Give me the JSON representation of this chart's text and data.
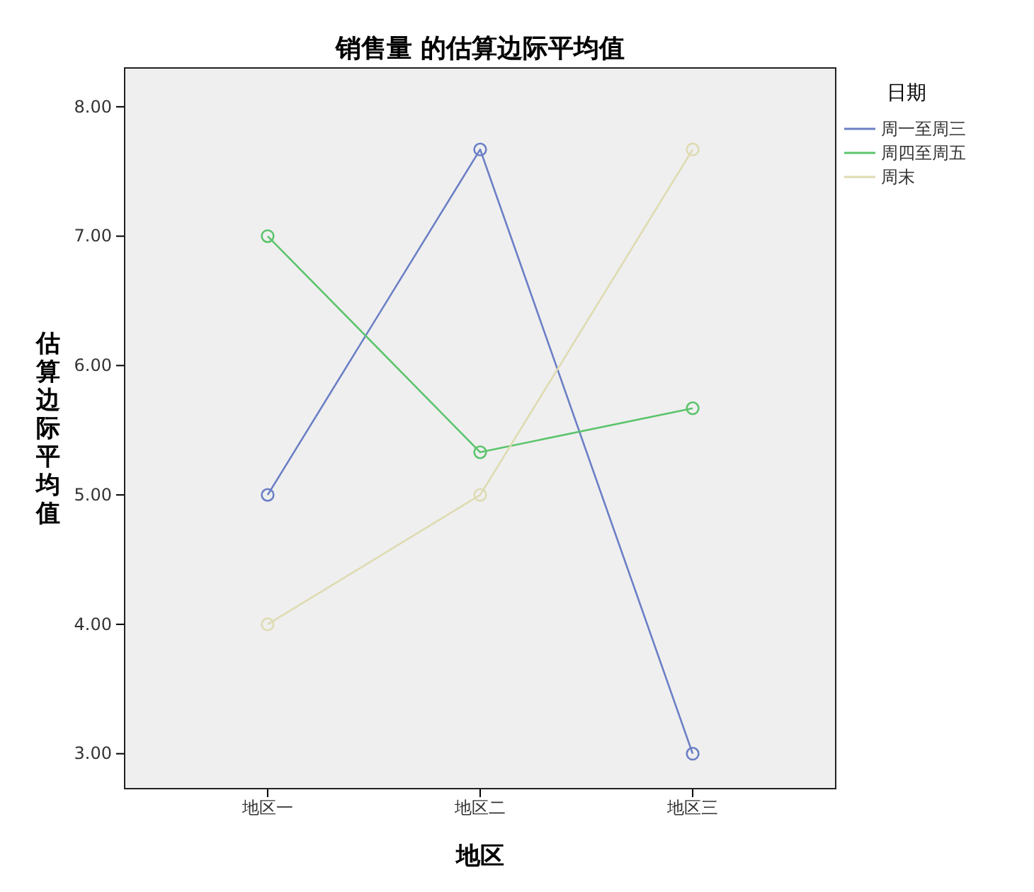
{
  "chart_data": {
    "type": "line",
    "title": "销售量 的估算边际平均值",
    "xlabel": "地区",
    "ylabel": "估算边际平均值",
    "legend_title": "日期",
    "categories": [
      "地区一",
      "地区二",
      "地区三"
    ],
    "series": [
      {
        "name": "周一至周三",
        "color": "#6b7fc6",
        "values": [
          5.0,
          7.67,
          3.0
        ]
      },
      {
        "name": "周四至周五",
        "color": "#5cc46c",
        "values": [
          7.0,
          5.33,
          5.67
        ]
      },
      {
        "name": "周末",
        "color": "#dedbb2",
        "values": [
          4.0,
          5.0,
          7.67
        ]
      }
    ],
    "ylim": [
      2.73,
      8.3
    ],
    "yticks": [
      {
        "value": 3,
        "label": "3.00"
      },
      {
        "value": 4,
        "label": "4.00"
      },
      {
        "value": 5,
        "label": "5.00"
      },
      {
        "value": 6,
        "label": "6.00"
      },
      {
        "value": 7,
        "label": "7.00"
      },
      {
        "value": 8,
        "label": "8.00"
      }
    ],
    "legend": "top right",
    "marker": "circle",
    "grid": false
  }
}
